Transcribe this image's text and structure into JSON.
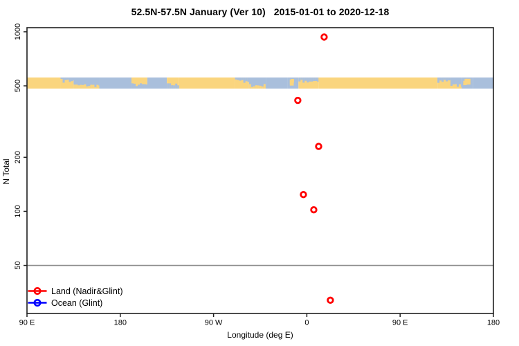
{
  "chart_data": {
    "type": "scatter",
    "title": "52.5N-57.5N January (Ver 10)   2015-01-01 to 2020-12-18",
    "xlabel": "Longitude (deg E)",
    "ylabel": "N Total",
    "x_axis": {
      "span_deg": 450,
      "start_lon": 90,
      "ticks": [
        {
          "label": "90 E",
          "u": 0
        },
        {
          "label": "180",
          "u": 90
        },
        {
          "label": "90 W",
          "u": 180
        },
        {
          "label": "0",
          "u": 270
        },
        {
          "label": "90 E",
          "u": 360
        },
        {
          "label": "180",
          "u": 450
        }
      ]
    },
    "y_axis": {
      "scale": "log",
      "ticks": [
        "1000",
        "500",
        "200",
        "100",
        "50"
      ],
      "tick_values": [
        1000,
        500,
        200,
        100,
        50
      ],
      "top": 1054,
      "bottom": 27
    },
    "gridline_n": 50,
    "grid_color": "#8c8c8c",
    "axis_color": "#1f1f1f",
    "series": [
      {
        "name": "Land (Nadir&Glint)",
        "color": "#FF0000",
        "points": [
          {
            "lon": 16.7,
            "n": 935
          },
          {
            "lon": -8.7,
            "n": 415
          },
          {
            "lon": 11.4,
            "n": 230
          },
          {
            "lon": -3.3,
            "n": 124
          },
          {
            "lon": 6.7,
            "n": 102
          },
          {
            "lon": 22.7,
            "n": 32
          }
        ]
      },
      {
        "name": "Ocean (Glint)",
        "color": "#0000FF",
        "points": []
      }
    ],
    "legend": [
      {
        "label": "Land (Nadir&Glint)",
        "color": "#FF0000"
      },
      {
        "label": "Ocean (Glint)",
        "color": "#0000FF"
      }
    ],
    "map_band": {
      "land_color": "#FAD57E",
      "ocean_color": "#A9BFDC",
      "segments": [
        {
          "f0": 0.0,
          "f1": 0.072,
          "t": "land"
        },
        {
          "f0": 0.072,
          "f1": 0.1,
          "t": "coast_on"
        },
        {
          "f0": 0.1,
          "f1": 0.155,
          "t": "mix_ot"
        },
        {
          "f0": 0.155,
          "f1": 0.224,
          "t": "ocean"
        },
        {
          "f0": 0.224,
          "f1": 0.258,
          "t": "mix_lt"
        },
        {
          "f0": 0.258,
          "f1": 0.3,
          "t": "ocean"
        },
        {
          "f0": 0.3,
          "f1": 0.326,
          "t": "mix_lt"
        },
        {
          "f0": 0.326,
          "f1": 0.446,
          "t": "land"
        },
        {
          "f0": 0.446,
          "f1": 0.476,
          "t": "coast_on"
        },
        {
          "f0": 0.476,
          "f1": 0.512,
          "t": "mix_ot"
        },
        {
          "f0": 0.512,
          "f1": 0.558,
          "t": "ocean"
        },
        {
          "f0": 0.558,
          "f1": 0.582,
          "t": "speckle_o"
        },
        {
          "f0": 0.582,
          "f1": 0.625,
          "t": "coast_on"
        },
        {
          "f0": 0.625,
          "f1": 0.88,
          "t": "land"
        },
        {
          "f0": 0.88,
          "f1": 0.908,
          "t": "coast_on"
        },
        {
          "f0": 0.908,
          "f1": 0.932,
          "t": "mix_ot"
        },
        {
          "f0": 0.932,
          "f1": 0.956,
          "t": "speckle_o"
        },
        {
          "f0": 0.956,
          "f1": 1.0,
          "t": "ocean"
        }
      ]
    }
  }
}
